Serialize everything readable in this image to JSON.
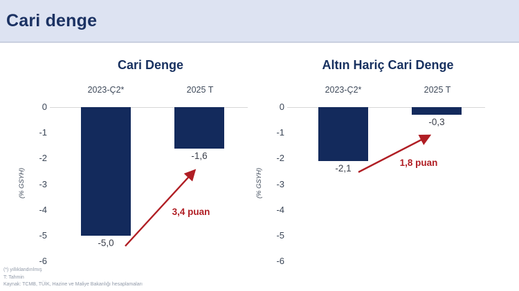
{
  "page": {
    "title": "Cari denge"
  },
  "colors": {
    "header_bg": "#dde3f2",
    "title_navy": "#17305f",
    "bar_navy": "#132a5c",
    "accent_red": "#b01e24",
    "tick_gray": "#3a4556",
    "footer_gray": "#9099a8"
  },
  "chart_data": [
    {
      "type": "bar",
      "title": "Cari Denge",
      "categories": [
        "2023-Ç2*",
        "2025 T"
      ],
      "values": [
        -5.0,
        -1.6
      ],
      "value_labels": [
        "-5,0",
        "-1,6"
      ],
      "annotation": "3,4 puan",
      "ylabel": "(% GSYH)",
      "ylim": [
        -6,
        0
      ],
      "yticks": [
        0,
        -1,
        -2,
        -3,
        -4,
        -5,
        -6
      ],
      "ytick_labels": [
        "0",
        "-1",
        "-2",
        "-3",
        "-4",
        "-5",
        "-6"
      ],
      "grid": "zero-line-only",
      "legend": "none"
    },
    {
      "type": "bar",
      "title": "Altın Hariç Cari Denge",
      "categories": [
        "2023-Ç2*",
        "2025 T"
      ],
      "values": [
        -2.1,
        -0.3
      ],
      "value_labels": [
        "-2,1",
        "-0,3"
      ],
      "annotation": "1,8 puan",
      "ylabel": "(% GSYH)",
      "ylim": [
        -6,
        0
      ],
      "yticks": [
        0,
        -1,
        -2,
        -3,
        -4,
        -5,
        -6
      ],
      "ytick_labels": [
        "0",
        "-1",
        "-2",
        "-3",
        "-4",
        "-5",
        "-6"
      ],
      "grid": "zero-line-only",
      "legend": "none"
    }
  ],
  "footer": {
    "lines": [
      "(*) yıllıklandırılmış",
      "T: Tahmin",
      "Kaynak: TCMB, TÜİK, Hazine ve Maliye Bakanlığı hesaplamaları"
    ]
  }
}
